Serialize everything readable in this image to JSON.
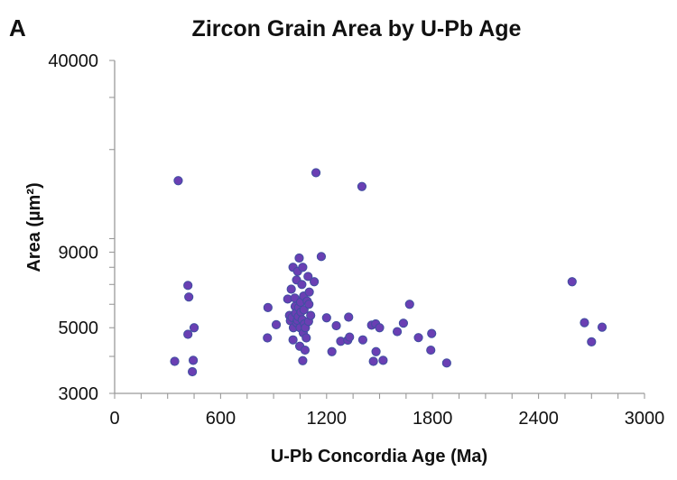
{
  "panel_label": "A",
  "colors": {
    "point_fill": "#6a3fb3",
    "point_stroke": "#3f4fa0",
    "axis": "#9a9a9a",
    "text": "#111111"
  },
  "chart_data": {
    "type": "scatter",
    "title": "Zircon Grain Area by U-Pb Age",
    "xlabel": "U-Pb Concordia Age (Ma)",
    "ylabel": "Area (µm²)",
    "xlim": [
      0,
      3000
    ],
    "ylim": [
      3000,
      40000
    ],
    "y_scale": "log",
    "grid": false,
    "xticks": [
      0,
      600,
      1200,
      1800,
      2400,
      3000
    ],
    "yticks": [
      3000,
      5000,
      9000,
      40000
    ],
    "series": [
      {
        "points": [
          [
            360,
            15700
          ],
          [
            340,
            3850
          ],
          [
            415,
            6950
          ],
          [
            420,
            6350
          ],
          [
            415,
            4750
          ],
          [
            450,
            5000
          ],
          [
            445,
            3880
          ],
          [
            440,
            3550
          ],
          [
            865,
            4620
          ],
          [
            868,
            5850
          ],
          [
            915,
            5120
          ],
          [
            980,
            6250
          ],
          [
            990,
            5500
          ],
          [
            995,
            5280
          ],
          [
            1000,
            6750
          ],
          [
            1005,
            5420
          ],
          [
            1010,
            4550
          ],
          [
            1010,
            8000
          ],
          [
            1012,
            5000
          ],
          [
            1020,
            6300
          ],
          [
            1022,
            5900
          ],
          [
            1025,
            5600
          ],
          [
            1030,
            5200
          ],
          [
            1030,
            7250
          ],
          [
            1035,
            5300
          ],
          [
            1036,
            7750
          ],
          [
            1040,
            5450
          ],
          [
            1042,
            5850
          ],
          [
            1045,
            8600
          ],
          [
            1048,
            4330
          ],
          [
            1050,
            5000
          ],
          [
            1053,
            6100
          ],
          [
            1055,
            5650
          ],
          [
            1060,
            7000
          ],
          [
            1062,
            5320
          ],
          [
            1065,
            3870
          ],
          [
            1065,
            8000
          ],
          [
            1068,
            4800
          ],
          [
            1070,
            6400
          ],
          [
            1072,
            5750
          ],
          [
            1075,
            5150
          ],
          [
            1078,
            4200
          ],
          [
            1080,
            5000
          ],
          [
            1085,
            4620
          ],
          [
            1090,
            6150
          ],
          [
            1095,
            7450
          ],
          [
            1098,
            5250
          ],
          [
            1100,
            6000
          ],
          [
            1102,
            6600
          ],
          [
            1110,
            5500
          ],
          [
            1130,
            7150
          ],
          [
            1140,
            16700
          ],
          [
            1170,
            8700
          ],
          [
            1200,
            5400
          ],
          [
            1230,
            4150
          ],
          [
            1255,
            5080
          ],
          [
            1280,
            4500
          ],
          [
            1320,
            4540
          ],
          [
            1325,
            5430
          ],
          [
            1330,
            4650
          ],
          [
            1400,
            15000
          ],
          [
            1405,
            4550
          ],
          [
            1455,
            5100
          ],
          [
            1465,
            3850
          ],
          [
            1478,
            5150
          ],
          [
            1480,
            4150
          ],
          [
            1500,
            5000
          ],
          [
            1520,
            3880
          ],
          [
            1600,
            4850
          ],
          [
            1635,
            5180
          ],
          [
            1670,
            6000
          ],
          [
            1720,
            4630
          ],
          [
            1790,
            4200
          ],
          [
            1795,
            4780
          ],
          [
            1880,
            3800
          ],
          [
            2590,
            7150
          ],
          [
            2660,
            5200
          ],
          [
            2700,
            4480
          ],
          [
            2760,
            5020
          ]
        ]
      }
    ]
  }
}
